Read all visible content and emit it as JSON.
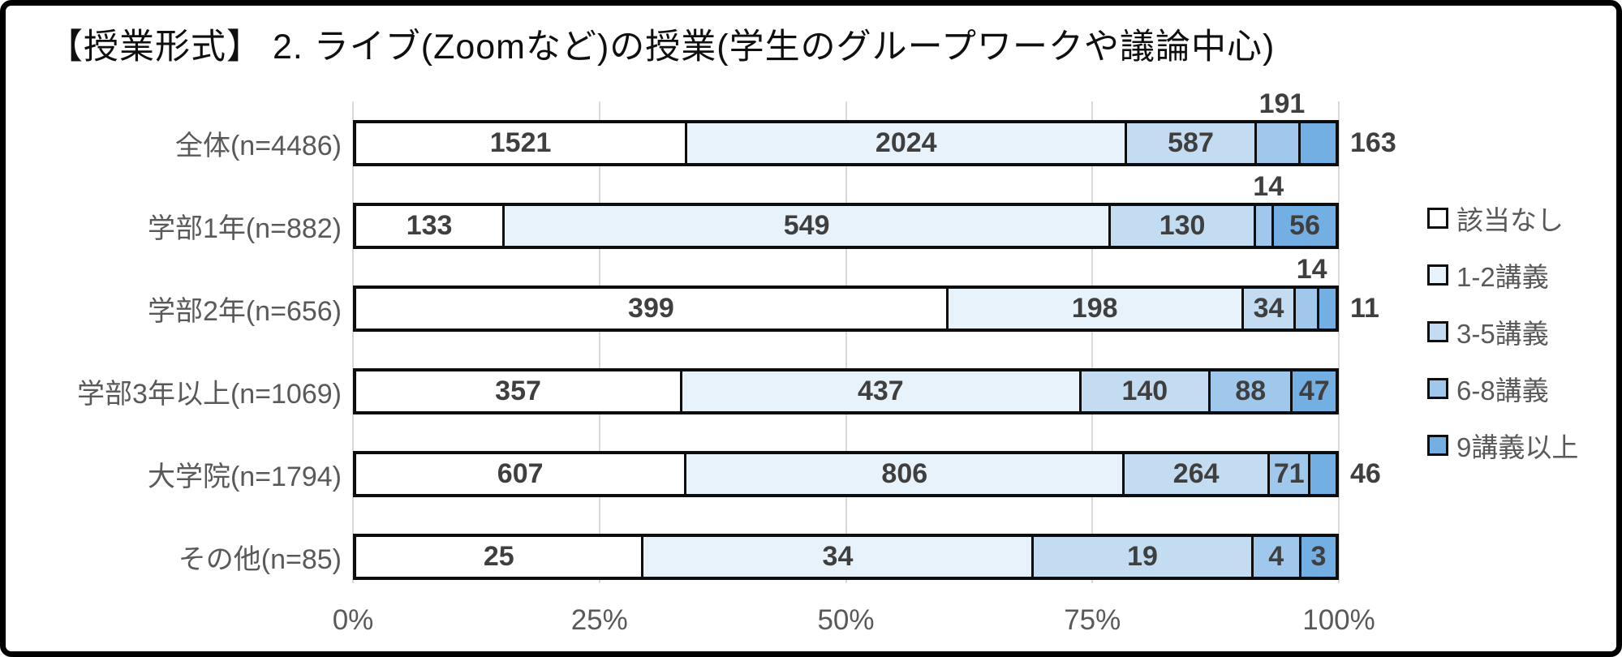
{
  "title": "【授業形式】 2. ライブ(Zoomなど)の授業(学生のグループワークや議論中心)",
  "chart_data": {
    "type": "bar",
    "variant": "100-percent-stacked-horizontal",
    "title": "【授業形式】 2. ライブ(Zoomなど)の授業(学生のグループワークや議論中心)",
    "xlabel": "",
    "ylabel": "",
    "x_axis": {
      "range_percent": [
        0,
        100
      ],
      "ticks": [
        "0%",
        "25%",
        "50%",
        "75%",
        "100%"
      ],
      "tick_percents": [
        0,
        25,
        50,
        75,
        100
      ],
      "grid": true
    },
    "series_names": [
      "該当なし",
      "1-2講義",
      "3-5講義",
      "6-8講義",
      "9講義以上"
    ],
    "series_colors": [
      "#FFFFFF",
      "#E8F2FA",
      "#C4DCF2",
      "#9FC8EC",
      "#74AFE3"
    ],
    "legend_position": "right",
    "categories": [
      {
        "label": "全体(n=4486)",
        "n": 4486,
        "values": [
          1521,
          2024,
          587,
          191,
          163
        ],
        "label_pos": [
          "inside",
          "inside",
          "inside",
          "above",
          "right"
        ]
      },
      {
        "label": "学部1年(n=882)",
        "n": 882,
        "values": [
          133,
          549,
          130,
          14,
          56
        ],
        "label_pos": [
          "inside",
          "inside",
          "inside",
          "above",
          "inside"
        ]
      },
      {
        "label": "学部2年(n=656)",
        "n": 656,
        "values": [
          399,
          198,
          34,
          14,
          11
        ],
        "label_pos": [
          "inside",
          "inside",
          "inside",
          "above",
          "right"
        ]
      },
      {
        "label": "学部3年以上(n=1069)",
        "n": 1069,
        "values": [
          357,
          437,
          140,
          88,
          47
        ],
        "label_pos": [
          "inside",
          "inside",
          "inside",
          "inside",
          "inside"
        ]
      },
      {
        "label": "大学院(n=1794)",
        "n": 1794,
        "values": [
          607,
          806,
          264,
          71,
          46
        ],
        "label_pos": [
          "inside",
          "inside",
          "inside",
          "inside",
          "right"
        ]
      },
      {
        "label": "その他(n=85)",
        "n": 85,
        "values": [
          25,
          34,
          19,
          4,
          3
        ],
        "label_pos": [
          "inside",
          "inside",
          "inside",
          "inside",
          "inside"
        ]
      }
    ]
  },
  "colors": {
    "frame_border": "#000000",
    "gridline": "#D9D9D9",
    "segment_border": "#0D0D0D",
    "category_text": "#595959",
    "axis_text": "#595959",
    "value_text": "#3F3F3F",
    "legend_text": "#595959",
    "background": "#FFFFFF"
  }
}
